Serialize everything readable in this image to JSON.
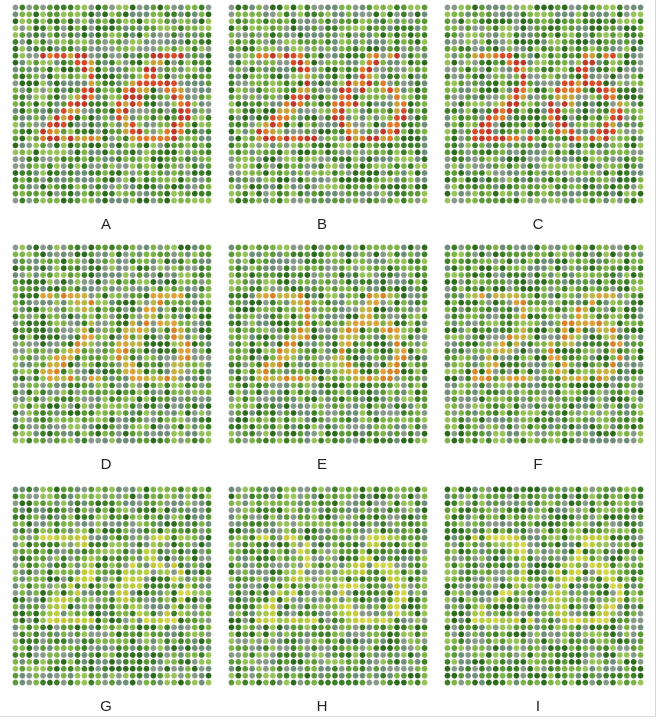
{
  "plates": [
    {
      "label": "A",
      "content": "26",
      "figure_color": "red",
      "intensity": 1.0
    },
    {
      "label": "B",
      "content": "26",
      "figure_color": "red",
      "intensity": 0.9
    },
    {
      "label": "C",
      "content": "26",
      "figure_color": "red",
      "intensity": 0.8
    },
    {
      "label": "D",
      "content": "26",
      "figure_color": "orange-red",
      "intensity": 0.75
    },
    {
      "label": "E",
      "content": "26",
      "figure_color": "orange-red",
      "intensity": 0.65
    },
    {
      "label": "F",
      "content": "26",
      "figure_color": "orange",
      "intensity": 0.55
    },
    {
      "label": "G",
      "content": "26",
      "figure_color": "yellow",
      "intensity": 0.45
    },
    {
      "label": "H",
      "content": "26",
      "figure_color": "yellow",
      "intensity": 0.4
    },
    {
      "label": "I",
      "content": "26",
      "figure_color": "yellow",
      "intensity": 0.35
    }
  ],
  "colors": {
    "background_dots": [
      "#2e6b1f",
      "#3f7f2a",
      "#5e9a3a",
      "#7fb44a",
      "#98c25a",
      "#8a9a8a",
      "#6f8f7a"
    ],
    "figure_red": [
      "#c0392b",
      "#d84a2a",
      "#e07a2a",
      "#c9a23a"
    ],
    "figure_orange": [
      "#d9832a",
      "#e0a03a",
      "#c9b040",
      "#b9b84a"
    ],
    "figure_yellow": [
      "#c9c83a",
      "#d6d64a",
      "#bcd040",
      "#a8c84a"
    ]
  }
}
